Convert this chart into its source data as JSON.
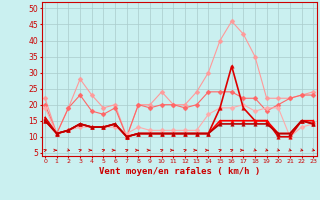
{
  "xlabel": "Vent moyen/en rafales ( km/h )",
  "bg_color": "#caf0f0",
  "grid_color": "#aacccc",
  "x_ticks": [
    0,
    1,
    2,
    3,
    4,
    5,
    6,
    7,
    8,
    9,
    10,
    11,
    12,
    13,
    14,
    15,
    16,
    17,
    18,
    19,
    20,
    21,
    22,
    23
  ],
  "y_ticks": [
    5,
    10,
    15,
    20,
    25,
    30,
    35,
    40,
    45,
    50
  ],
  "ylim": [
    4,
    52
  ],
  "xlim": [
    -0.3,
    23.3
  ],
  "series": [
    {
      "color": "#ff9999",
      "linewidth": 0.8,
      "marker": "D",
      "markersize": 2.5,
      "values": [
        22,
        11,
        19,
        28,
        23,
        19,
        20,
        10,
        20,
        20,
        24,
        20,
        20,
        24,
        30,
        40,
        46,
        42,
        35,
        22,
        22,
        22,
        23,
        24
      ]
    },
    {
      "color": "#ff6666",
      "linewidth": 0.8,
      "marker": "D",
      "markersize": 2.5,
      "values": [
        20,
        11,
        19,
        23,
        18,
        17,
        19,
        10,
        20,
        19,
        20,
        20,
        19,
        20,
        24,
        24,
        24,
        22,
        22,
        18,
        20,
        22,
        23,
        23
      ]
    },
    {
      "color": "#ffaaaa",
      "linewidth": 0.8,
      "marker": "D",
      "markersize": 2.5,
      "values": [
        19,
        11,
        12,
        13,
        13,
        13,
        13,
        11,
        13,
        12,
        12,
        12,
        12,
        12,
        17,
        19,
        19,
        20,
        18,
        19,
        19,
        10,
        13,
        14
      ]
    },
    {
      "color": "#dd0000",
      "linewidth": 1.2,
      "marker": "^",
      "markersize": 2.5,
      "values": [
        16,
        11,
        12,
        14,
        13,
        13,
        14,
        10,
        11,
        11,
        11,
        11,
        11,
        11,
        11,
        19,
        32,
        19,
        15,
        15,
        10,
        10,
        15,
        14
      ]
    },
    {
      "color": "#ff0000",
      "linewidth": 1.2,
      "marker": "^",
      "markersize": 2.5,
      "values": [
        15,
        11,
        12,
        14,
        13,
        13,
        14,
        10,
        11,
        11,
        11,
        11,
        11,
        11,
        11,
        15,
        15,
        15,
        15,
        15,
        11,
        11,
        15,
        15
      ]
    },
    {
      "color": "#bb0000",
      "linewidth": 1.2,
      "marker": "^",
      "markersize": 2.5,
      "values": [
        15,
        11,
        12,
        14,
        13,
        13,
        14,
        10,
        11,
        11,
        11,
        11,
        11,
        11,
        11,
        14,
        14,
        14,
        14,
        14,
        11,
        11,
        15,
        14
      ]
    }
  ],
  "wind_angles": [
    45,
    90,
    135,
    45,
    90,
    45,
    90,
    45,
    90,
    90,
    45,
    90,
    45,
    90,
    90,
    45,
    45,
    90,
    135,
    135,
    135,
    135,
    135,
    135
  ]
}
